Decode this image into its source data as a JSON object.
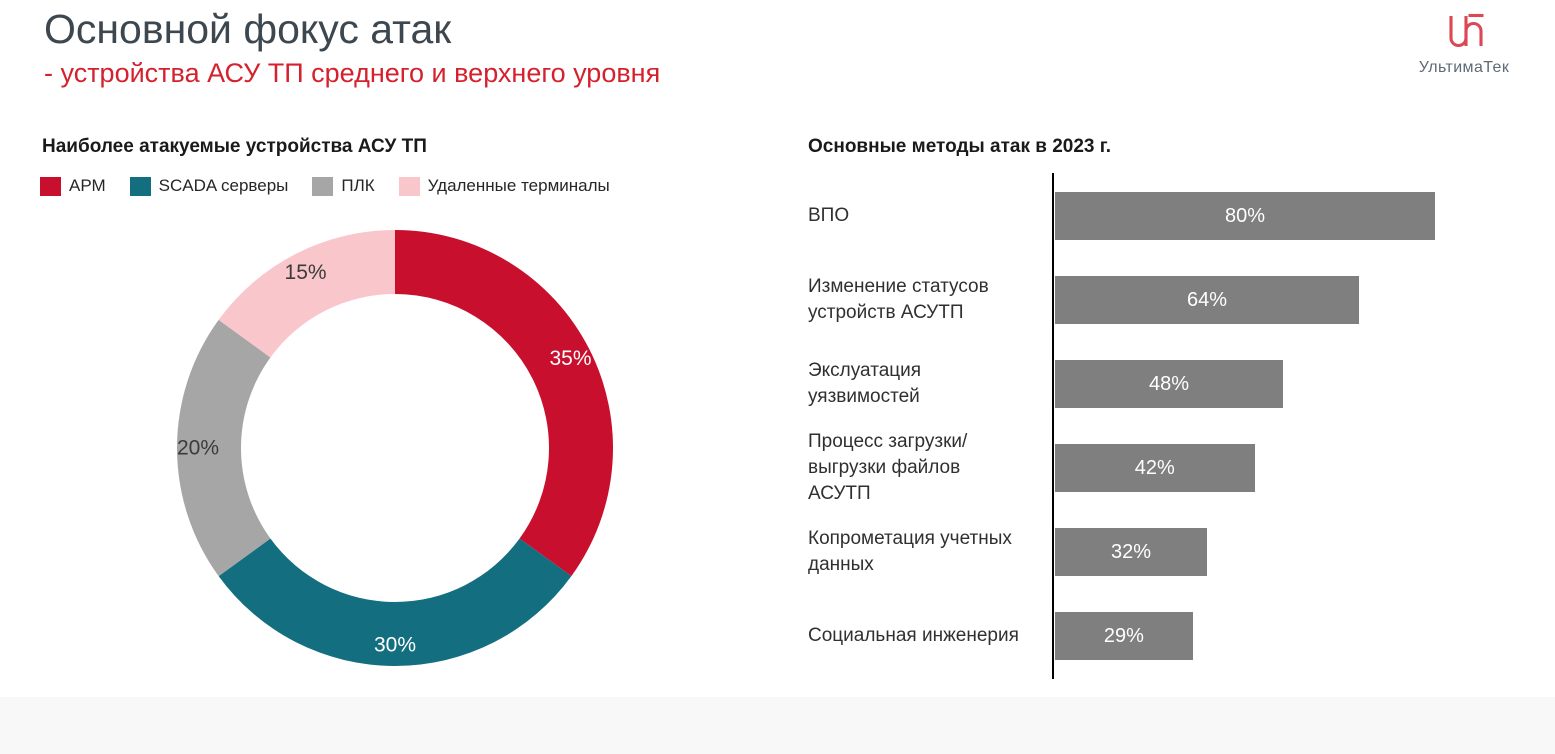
{
  "header": {
    "title": "Основной фокус атак",
    "subtitle": "- устройства АСУ ТП среднего и верхнего уровня"
  },
  "logo": {
    "text": "УльтимаТек",
    "mark_color": "#DB4853"
  },
  "colors": {
    "accent_red": "#D5212E",
    "title": "#3D4750",
    "text_dark": "#303030",
    "footer": "#F8F8F8"
  },
  "chart_data": [
    {
      "type": "pie",
      "donut": true,
      "title": "Наиболее атакуемые устройства АСУ ТП",
      "categories": [
        "АРМ",
        "SCADA серверы",
        "ПЛК",
        "Удаленные терминалы"
      ],
      "values": [
        35,
        30,
        20,
        15
      ],
      "labels": [
        "35%",
        "30%",
        "20%",
        "15%"
      ],
      "colors": [
        "#C8102E",
        "#136F7F",
        "#A6A6A6",
        "#F9C6CB"
      ],
      "label_colors": [
        "#FFFFFF",
        "#FFFFFF",
        "#3B3B3B",
        "#3B3B3B"
      ],
      "legend_position": "top",
      "start_angle_deg": 0,
      "direction": "clockwise"
    },
    {
      "type": "bar",
      "orientation": "horizontal",
      "title": "Основные методы атак в 2023 г.",
      "categories": [
        "ВПО",
        "Изменение статусов устройств АСУТП",
        "Экслуатация уязвимостей",
        "Процесс загрузки/ выгрузки файлов АСУТП",
        "Копрометация учетных данных",
        "Социальная инженерия"
      ],
      "values": [
        80,
        64,
        48,
        42,
        32,
        29
      ],
      "labels": [
        "80%",
        "64%",
        "48%",
        "42%",
        "32%",
        "29%"
      ],
      "bar_color": "#7F7F7F",
      "value_label_color": "#FFFFFF",
      "xlim": [
        0,
        100
      ],
      "grid": false,
      "axis_line": true
    }
  ]
}
